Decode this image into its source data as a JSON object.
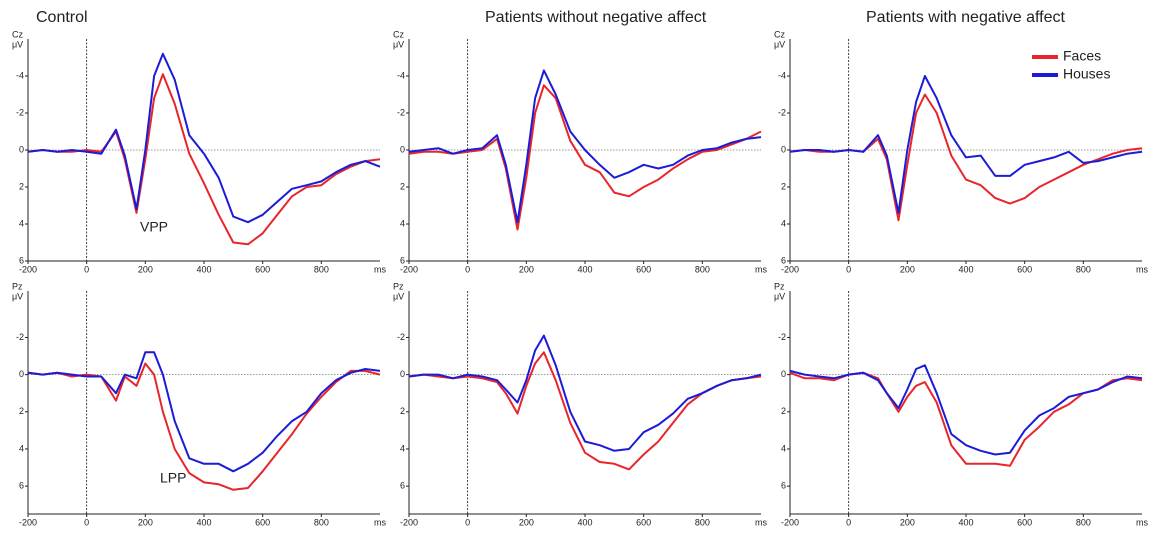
{
  "legend": [
    {
      "name": "Faces",
      "color": "#e8252b"
    },
    {
      "name": "Houses",
      "color": "#1c1cd8"
    }
  ],
  "chart_data": [
    {
      "type": "line",
      "title": "Control",
      "channel": "Cz",
      "unit": "μV",
      "x_label": "ms",
      "annotation": "VPP",
      "x": [
        -200,
        -150,
        -100,
        -50,
        0,
        50,
        100,
        130,
        170,
        200,
        230,
        260,
        300,
        350,
        400,
        450,
        500,
        550,
        600,
        650,
        700,
        750,
        800,
        850,
        900,
        950,
        1000
      ],
      "xlim": [
        -200,
        1000
      ],
      "xticks": [
        -200,
        0,
        200,
        400,
        600,
        800
      ],
      "ylim": [
        6,
        -6
      ],
      "yticks": [
        -4,
        -2,
        0,
        2,
        4,
        6
      ],
      "series": [
        {
          "values": [
            0.1,
            0,
            0.1,
            0.1,
            0,
            0.1,
            -1.0,
            0.5,
            3.4,
            0.5,
            -2.8,
            -4.1,
            -2.5,
            0.2,
            1.8,
            3.5,
            5.0,
            5.1,
            4.5,
            3.5,
            2.5,
            2.0,
            1.9,
            1.3,
            0.9,
            0.6,
            0.5
          ]
        },
        {
          "values": [
            0.1,
            0,
            0.1,
            0,
            0.1,
            0.2,
            -1.1,
            0.3,
            3.2,
            0,
            -4,
            -5.2,
            -3.8,
            -0.8,
            0.2,
            1.5,
            3.6,
            3.9,
            3.5,
            2.8,
            2.1,
            1.9,
            1.7,
            1.2,
            0.8,
            0.6,
            0.9
          ]
        }
      ]
    },
    {
      "type": "line",
      "title": "Patients without negative affect",
      "channel": "Cz",
      "unit": "μV",
      "x_label": "ms",
      "x": [
        -200,
        -150,
        -100,
        -50,
        0,
        50,
        100,
        130,
        170,
        200,
        230,
        260,
        300,
        350,
        400,
        450,
        500,
        550,
        600,
        650,
        700,
        750,
        800,
        850,
        900,
        950,
        1000
      ],
      "xlim": [
        -200,
        1000
      ],
      "xticks": [
        -200,
        0,
        200,
        400,
        600,
        800
      ],
      "ylim": [
        6,
        -6
      ],
      "yticks": [
        -4,
        -2,
        0,
        2,
        4,
        6
      ],
      "series": [
        {
          "values": [
            0.2,
            0.1,
            0.1,
            0.2,
            0.1,
            0,
            -0.6,
            1.0,
            4.3,
            1.5,
            -2,
            -3.5,
            -2.8,
            -0.5,
            0.8,
            1.2,
            2.3,
            2.5,
            2.0,
            1.6,
            1.0,
            0.5,
            0.1,
            0,
            -0.3,
            -0.6,
            -1.0
          ]
        },
        {
          "values": [
            0.1,
            0,
            -0.1,
            0.2,
            0,
            -0.1,
            -0.8,
            0.8,
            3.9,
            0.8,
            -2.8,
            -4.3,
            -3.0,
            -1.0,
            0,
            0.8,
            1.5,
            1.2,
            0.8,
            1.0,
            0.8,
            0.3,
            0,
            -0.1,
            -0.4,
            -0.6,
            -0.7
          ]
        }
      ]
    },
    {
      "type": "line",
      "title": "Patients with negative affect",
      "channel": "Cz",
      "unit": "μV",
      "x_label": "ms",
      "x": [
        -200,
        -150,
        -100,
        -50,
        0,
        50,
        100,
        130,
        170,
        200,
        230,
        260,
        300,
        350,
        400,
        450,
        500,
        550,
        600,
        650,
        700,
        750,
        800,
        850,
        900,
        950,
        1000
      ],
      "xlim": [
        -200,
        1000
      ],
      "xticks": [
        -200,
        0,
        200,
        400,
        600,
        800
      ],
      "ylim": [
        6,
        -6
      ],
      "yticks": [
        -4,
        -2,
        0,
        2,
        4,
        6
      ],
      "series": [
        {
          "values": [
            0.1,
            0,
            0.1,
            0.1,
            0,
            0.1,
            -0.6,
            0.5,
            3.8,
            0.8,
            -2,
            -3,
            -2,
            0.3,
            1.6,
            1.9,
            2.6,
            2.9,
            2.6,
            2.0,
            1.6,
            1.2,
            0.8,
            0.5,
            0.2,
            0,
            -0.1
          ]
        },
        {
          "values": [
            0.1,
            0,
            0,
            0.1,
            0,
            0.1,
            -0.8,
            0.3,
            3.4,
            0,
            -2.6,
            -4,
            -2.8,
            -0.8,
            0.4,
            0.3,
            1.4,
            1.4,
            0.8,
            0.6,
            0.4,
            0.1,
            0.7,
            0.6,
            0.4,
            0.2,
            0.1
          ]
        }
      ]
    },
    {
      "type": "line",
      "channel": "Pz",
      "unit": "μV",
      "x_label": "ms",
      "annotation": "LPP",
      "x": [
        -200,
        -150,
        -100,
        -50,
        0,
        50,
        100,
        130,
        170,
        200,
        230,
        260,
        300,
        350,
        400,
        450,
        500,
        550,
        600,
        650,
        700,
        750,
        800,
        850,
        900,
        950,
        1000
      ],
      "xlim": [
        -200,
        1000
      ],
      "xticks": [
        -200,
        0,
        200,
        400,
        600,
        800
      ],
      "ylim": [
        7.5,
        -4.5
      ],
      "yticks": [
        -2,
        0,
        2,
        4,
        6
      ],
      "series": [
        {
          "values": [
            -0.1,
            0,
            -0.1,
            0.1,
            0,
            0.1,
            1.4,
            0.1,
            0.6,
            -0.6,
            0,
            2.0,
            4.0,
            5.3,
            5.8,
            5.9,
            6.2,
            6.1,
            5.2,
            4.2,
            3.2,
            2.1,
            1.2,
            0.4,
            -0.2,
            -0.2,
            0
          ]
        },
        {
          "values": [
            -0.1,
            0,
            -0.1,
            0,
            0.1,
            0.1,
            1.0,
            0,
            0.2,
            -1.2,
            -1.2,
            0,
            2.5,
            4.5,
            4.8,
            4.8,
            5.2,
            4.8,
            4.2,
            3.3,
            2.5,
            2.0,
            1.0,
            0.3,
            -0.1,
            -0.3,
            -0.2
          ]
        }
      ]
    },
    {
      "type": "line",
      "channel": "Pz",
      "unit": "μV",
      "x_label": "ms",
      "x": [
        -200,
        -150,
        -100,
        -50,
        0,
        50,
        100,
        130,
        170,
        200,
        230,
        260,
        300,
        350,
        400,
        450,
        500,
        550,
        600,
        650,
        700,
        750,
        800,
        850,
        900,
        950,
        1000
      ],
      "xlim": [
        -200,
        1000
      ],
      "xticks": [
        -200,
        0,
        200,
        400,
        600,
        800
      ],
      "ylim": [
        7.5,
        -4.5
      ],
      "yticks": [
        -2,
        0,
        2,
        4,
        6
      ],
      "series": [
        {
          "values": [
            0.1,
            0,
            0.1,
            0.2,
            0.1,
            0.2,
            0.4,
            1.0,
            2.1,
            0.6,
            -0.6,
            -1.2,
            0.3,
            2.6,
            4.2,
            4.7,
            4.8,
            5.1,
            4.3,
            3.6,
            2.6,
            1.6,
            1.0,
            0.6,
            0.3,
            0.2,
            0.1
          ]
        },
        {
          "values": [
            0.1,
            0,
            0,
            0.2,
            0,
            0.1,
            0.3,
            0.8,
            1.5,
            0.3,
            -1.3,
            -2.1,
            -0.5,
            2.0,
            3.6,
            3.8,
            4.1,
            4.0,
            3.1,
            2.7,
            2.1,
            1.3,
            1.0,
            0.6,
            0.3,
            0.2,
            0
          ]
        }
      ]
    },
    {
      "type": "line",
      "channel": "Pz",
      "unit": "μV",
      "x_label": "ms",
      "x": [
        -200,
        -150,
        -100,
        -50,
        0,
        50,
        100,
        130,
        170,
        200,
        230,
        260,
        300,
        350,
        400,
        450,
        500,
        550,
        600,
        650,
        700,
        750,
        800,
        850,
        900,
        950,
        1000
      ],
      "xlim": [
        -200,
        1000
      ],
      "xticks": [
        -200,
        0,
        200,
        400,
        600,
        800
      ],
      "ylim": [
        7.5,
        -4.5
      ],
      "yticks": [
        -2,
        0,
        2,
        4,
        6
      ],
      "series": [
        {
          "values": [
            -0.1,
            0.2,
            0.2,
            0.3,
            0,
            -0.1,
            0.2,
            1.0,
            2.0,
            1.2,
            0.6,
            0.4,
            1.5,
            3.8,
            4.8,
            4.8,
            4.8,
            4.9,
            3.5,
            2.8,
            2.0,
            1.6,
            1.0,
            0.8,
            0.3,
            0.2,
            0.3
          ]
        },
        {
          "values": [
            -0.2,
            0,
            0.1,
            0.2,
            0,
            -0.1,
            0.3,
            1.0,
            1.8,
            0.8,
            -0.3,
            -0.5,
            1.0,
            3.2,
            3.8,
            4.1,
            4.3,
            4.2,
            3.0,
            2.2,
            1.8,
            1.2,
            1.0,
            0.8,
            0.4,
            0.1,
            0.2
          ]
        }
      ]
    }
  ]
}
